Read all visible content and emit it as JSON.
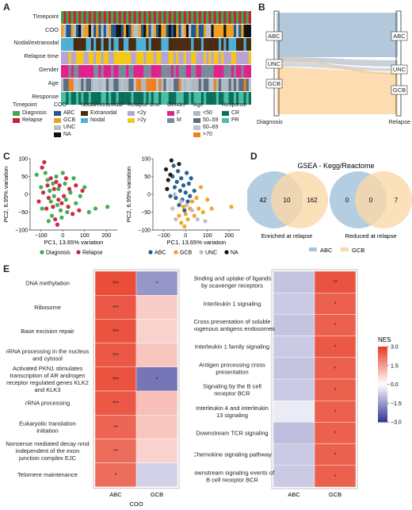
{
  "panels": {
    "a": "A",
    "b": "B",
    "c": "C",
    "d": "D",
    "e": "E"
  },
  "colors": {
    "diagnosis": "#3aaa4a",
    "relapse": "#c8203a",
    "abc": "#1f5a8c",
    "gcb": "#f0a020",
    "unc": "#b8bec6",
    "na": "#111111",
    "extranodal": "#4a2a10",
    "nodal": "#4ab0d8",
    "lt2y": "#b8a4d4",
    "gt2y": "#f2c81a",
    "female": "#e0208c",
    "male": "#7b8a98",
    "age_lt50": "#b0b8c0",
    "age_5059": "#5a6e80",
    "age_6069": "#b8c4d0",
    "age_gt70": "#f08020",
    "cr": "#0a6e5a",
    "pr": "#4abda2",
    "sankey_abc": "#b4c8dc",
    "sankey_gcb": "#fcdcb0",
    "venn_abc": "#a8c4dc",
    "venn_gcb": "#fad8a8",
    "venn_overlap": "#9a8a70"
  },
  "heatmap_a": {
    "row_labels": [
      "Timepoint",
      "COO",
      "Nodal/extranodal",
      "Relapse time",
      "Gender",
      "Age",
      "Response"
    ],
    "legend": [
      {
        "title": "Timepoint",
        "items": [
          {
            "label": "Diagnosis",
            "color": "#3aaa4a"
          },
          {
            "label": "Relapse",
            "color": "#c8203a"
          }
        ]
      },
      {
        "title": "COO",
        "items": [
          {
            "label": "ABC",
            "color": "#1f5a8c"
          },
          {
            "label": "GCB",
            "color": "#f0a020"
          },
          {
            "label": "UNC",
            "color": "#b8bec6"
          },
          {
            "label": "NA",
            "color": "#111111"
          }
        ]
      },
      {
        "title": "Nodal/extranodal",
        "items": [
          {
            "label": "Extranodal",
            "color": "#4a2a10"
          },
          {
            "label": "Nodal",
            "color": "#4ab0d8"
          }
        ]
      },
      {
        "title": "Relapse time",
        "items": [
          {
            "label": "<2y",
            "color": "#b8a4d4"
          },
          {
            "label": ">2y",
            "color": "#f2c81a"
          }
        ]
      },
      {
        "title": "Gender",
        "items": [
          {
            "label": "F",
            "color": "#e0208c"
          },
          {
            "label": "M",
            "color": "#7b8a98"
          }
        ]
      },
      {
        "title": "Age",
        "items": [
          {
            "label": "<50",
            "color": "#b0b8c0"
          },
          {
            "label": "50–59",
            "color": "#5a6e80"
          },
          {
            "label": "60–69",
            "color": "#b8c4d0"
          },
          {
            "label": ">70",
            "color": "#f08020"
          }
        ]
      },
      {
        "title": "Response",
        "items": [
          {
            "label": "CR",
            "color": "#0a6e5a"
          },
          {
            "label": "PR",
            "color": "#4abda2"
          }
        ]
      }
    ]
  },
  "sankey": {
    "left_nodes": [
      "ABC",
      "UNC",
      "GCB"
    ],
    "right_nodes": [
      "ABC",
      "UNC",
      "GCB"
    ],
    "xlabel_left": "Diagnosis",
    "xlabel_right": "Relapse"
  },
  "chart_data": [
    {
      "type": "scatter",
      "xlabel": "PC1, 13.65% variation",
      "ylabel": "PC2, 6.95% variation",
      "xlim": [
        -150,
        250
      ],
      "ylim": [
        -100,
        100
      ],
      "xticks": [
        -100,
        0,
        100,
        200
      ],
      "yticks": [
        -100,
        -50,
        0,
        50,
        100
      ],
      "legend": [
        "Diagnosis",
        "Relapse"
      ],
      "series": [
        {
          "name": "Diagnosis",
          "points": [
            [
              -120,
              55
            ],
            [
              -100,
              20
            ],
            [
              -95,
              -40
            ],
            [
              -80,
              60
            ],
            [
              -70,
              40
            ],
            [
              -60,
              10
            ],
            [
              -55,
              -20
            ],
            [
              -50,
              -60
            ],
            [
              -45,
              30
            ],
            [
              -40,
              -5
            ],
            [
              -30,
              50
            ],
            [
              -25,
              -30
            ],
            [
              -20,
              15
            ],
            [
              -10,
              -45
            ],
            [
              0,
              60
            ],
            [
              10,
              30
            ],
            [
              15,
              -15
            ],
            [
              20,
              -50
            ],
            [
              35,
              5
            ],
            [
              50,
              45
            ],
            [
              60,
              -25
            ],
            [
              80,
              -5
            ],
            [
              100,
              20
            ],
            [
              120,
              -50
            ],
            [
              150,
              -40
            ],
            [
              205,
              -35
            ],
            [
              -65,
              -75
            ],
            [
              -5,
              -65
            ]
          ]
        },
        {
          "name": "Relapse",
          "points": [
            [
              -110,
              -20
            ],
            [
              -95,
              75
            ],
            [
              -90,
              5
            ],
            [
              -75,
              -40
            ],
            [
              -70,
              25
            ],
            [
              -65,
              -10
            ],
            [
              -55,
              45
            ],
            [
              -45,
              -35
            ],
            [
              -40,
              15
            ],
            [
              -35,
              -70
            ],
            [
              -30,
              35
            ],
            [
              -20,
              -15
            ],
            [
              -15,
              25
            ],
            [
              -5,
              -25
            ],
            [
              5,
              -5
            ],
            [
              15,
              45
            ],
            [
              25,
              -35
            ],
            [
              30,
              15
            ],
            [
              45,
              -55
            ],
            [
              60,
              25
            ],
            [
              75,
              -45
            ],
            [
              90,
              10
            ],
            [
              -85,
              90
            ],
            [
              -25,
              -85
            ]
          ]
        }
      ]
    },
    {
      "type": "scatter",
      "xlabel": "PC1, 13.65% variation",
      "ylabel": "PC2, 6.95% variation",
      "xlim": [
        -150,
        250
      ],
      "ylim": [
        -100,
        100
      ],
      "xticks": [
        -100,
        0,
        100,
        200
      ],
      "yticks": [
        -100,
        -50,
        0,
        50,
        100
      ],
      "legend": [
        "ABC",
        "GCB",
        "UNC",
        "NA"
      ],
      "series": [
        {
          "name": "ABC",
          "points": [
            [
              -60,
              50
            ],
            [
              -50,
              20
            ],
            [
              -45,
              -10
            ],
            [
              -40,
              35
            ],
            [
              -35,
              65
            ],
            [
              -30,
              -30
            ],
            [
              -25,
              10
            ],
            [
              -20,
              45
            ],
            [
              -15,
              -15
            ],
            [
              -10,
              25
            ],
            [
              -5,
              -45
            ],
            [
              0,
              5
            ],
            [
              5,
              60
            ],
            [
              10,
              -20
            ],
            [
              15,
              30
            ],
            [
              20,
              -5
            ],
            [
              25,
              45
            ],
            [
              -70,
              -5
            ],
            [
              -55,
              80
            ],
            [
              40,
              10
            ]
          ]
        },
        {
          "name": "GCB",
          "points": [
            [
              -30,
              -60
            ],
            [
              -20,
              -80
            ],
            [
              -10,
              -35
            ],
            [
              0,
              -55
            ],
            [
              10,
              -70
            ],
            [
              20,
              -40
            ],
            [
              30,
              -20
            ],
            [
              40,
              -60
            ],
            [
              50,
              -10
            ],
            [
              60,
              -40
            ],
            [
              70,
              20
            ],
            [
              80,
              -50
            ],
            [
              100,
              -15
            ],
            [
              120,
              -40
            ],
            [
              210,
              -35
            ],
            [
              -5,
              -90
            ]
          ]
        },
        {
          "name": "UNC",
          "points": [
            [
              -60,
              -40
            ],
            [
              -45,
              -70
            ],
            [
              -20,
              -20
            ],
            [
              5,
              -30
            ],
            [
              30,
              -45
            ],
            [
              55,
              -70
            ],
            [
              90,
              -75
            ],
            [
              -50,
              0
            ]
          ]
        },
        {
          "name": "NA",
          "points": [
            [
              -90,
              70
            ],
            [
              -80,
              40
            ],
            [
              -70,
              55
            ],
            [
              -85,
              15
            ],
            [
              -30,
              85
            ],
            [
              -65,
              95
            ]
          ]
        }
      ]
    },
    {
      "type": "heatmap",
      "xlabel": "COO",
      "columns": [
        "ABC",
        "GCB"
      ],
      "rows": [
        "DNA methylation",
        "Ribosome",
        "Base excision repair",
        "rRNA processing in the nucleus and cytosol",
        "Activated PKN1 stimulates transcription of AR androgen receptor regulated genes KLK2 and KLK3",
        "rRNA processing",
        "Eukaryotic translation initiation",
        "Nonsense mediated decay nmd independent of the exon junction complex EJC",
        "Telomere maintenance"
      ],
      "values": [
        [
          2.8,
          -1.6
        ],
        [
          2.6,
          0.8
        ],
        [
          2.7,
          0.7
        ],
        [
          2.6,
          0.9
        ],
        [
          2.7,
          -2.1
        ],
        [
          2.6,
          1.0
        ],
        [
          2.4,
          0.9
        ],
        [
          2.3,
          0.7
        ],
        [
          2.3,
          -0.7
        ]
      ],
      "labels": [
        [
          "***",
          "*"
        ],
        [
          "***",
          ""
        ],
        [
          "***",
          ""
        ],
        [
          "***",
          ""
        ],
        [
          "***",
          "*"
        ],
        [
          "***",
          ""
        ],
        [
          "**",
          ""
        ],
        [
          "**",
          ""
        ],
        [
          "*",
          ""
        ]
      ]
    },
    {
      "type": "heatmap",
      "columns": [
        "ABC",
        "GCB"
      ],
      "rows": [
        "Binding and uptake of ligands by scavenger receptors",
        "Interleukin 1 signaling",
        "Cross presentation of soluble exogenous antigens endosomes",
        "Interleukin 1 family signaling",
        "Antigen processing cross presentation",
        "Signaling by the B cell receptor BCR",
        "Interleukin 4 and interleukin 13 signaling",
        "Downstream TCR signaling",
        "Chemokine signaling pathway",
        "Downstream signaling events of B cell receptor BCR"
      ],
      "values": [
        [
          -0.9,
          2.7
        ],
        [
          -0.8,
          2.5
        ],
        [
          -0.9,
          2.5
        ],
        [
          -0.8,
          2.6
        ],
        [
          -0.9,
          2.5
        ],
        [
          -0.8,
          2.5
        ],
        [
          -0.3,
          2.5
        ],
        [
          -1.0,
          2.5
        ],
        [
          -0.8,
          2.5
        ],
        [
          -0.8,
          2.5
        ]
      ],
      "labels": [
        [
          "",
          "**"
        ],
        [
          "",
          "*"
        ],
        [
          "",
          "*"
        ],
        [
          "",
          "*"
        ],
        [
          "",
          "*"
        ],
        [
          "",
          "*"
        ],
        [
          "",
          "*"
        ],
        [
          "",
          "*"
        ],
        [
          "",
          "*"
        ],
        [
          "",
          "*"
        ]
      ],
      "colorbar": {
        "title": "NES",
        "ticks": [
          3.0,
          1.5,
          0.0,
          -1.5,
          -3.0
        ],
        "tick_labels": [
          "3.0",
          "1.5",
          "0.0",
          "−1.5",
          "−3.0"
        ],
        "range": [
          -3,
          3
        ]
      }
    }
  ],
  "venn": {
    "title": "GSEA - Kegg/Reactome",
    "left": {
      "only_abc": "42",
      "overlap": "10",
      "only_gcb": "162",
      "caption": "Enriched at relapse"
    },
    "right": {
      "only_abc": "0",
      "overlap": "0",
      "only_gcb": "7",
      "caption": "Reduced at relapse"
    },
    "legend": [
      "ABC",
      "GCB"
    ]
  }
}
